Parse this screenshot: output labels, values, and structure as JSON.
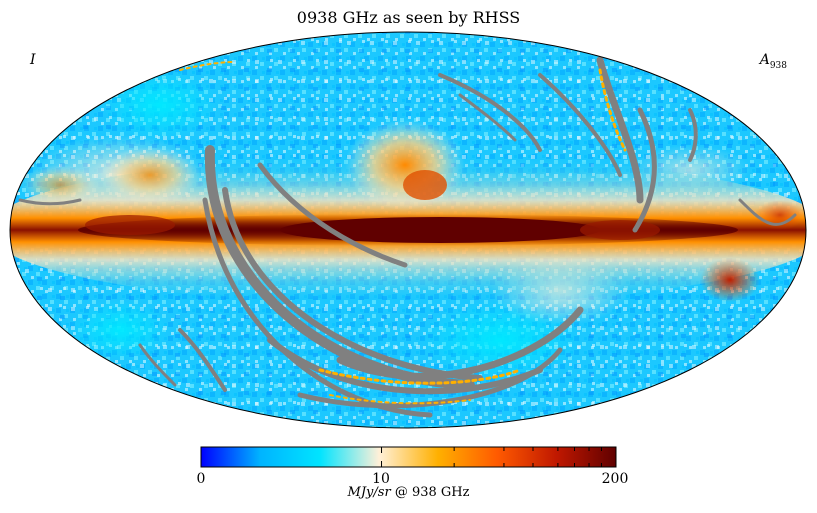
{
  "title": "0938 GHz as seen by RHSS",
  "stokes_label": "I",
  "component_label": "A",
  "component_subscript": "938",
  "colorbar": {
    "unit_italic": "MJy/sr",
    "unit_rest": "@ 938 GHz",
    "tick_labels": [
      "0",
      "10",
      "200"
    ],
    "colors": [
      "#0000ff",
      "#00b4ff",
      "#00e4ff",
      "#fff0d8",
      "#ffb000",
      "#ff5a00",
      "#c01800",
      "#600000"
    ]
  },
  "chart_data": {
    "type": "heatmap",
    "projection": "mollweide",
    "title": "0938 GHz as seen by RHSS",
    "quantity": "I",
    "component": "A_938",
    "colorbar_range": [
      0,
      200
    ],
    "colorbar_ticks": [
      0,
      10,
      200
    ],
    "colorbar_scale": "log-like",
    "unit": "MJy/sr @ 938 GHz",
    "masked_color": "#808080",
    "features": [
      "bright dust emission along the Galactic plane",
      "grey masked stripes from incomplete scan coverage",
      "cold high-latitude sky at low values"
    ]
  }
}
